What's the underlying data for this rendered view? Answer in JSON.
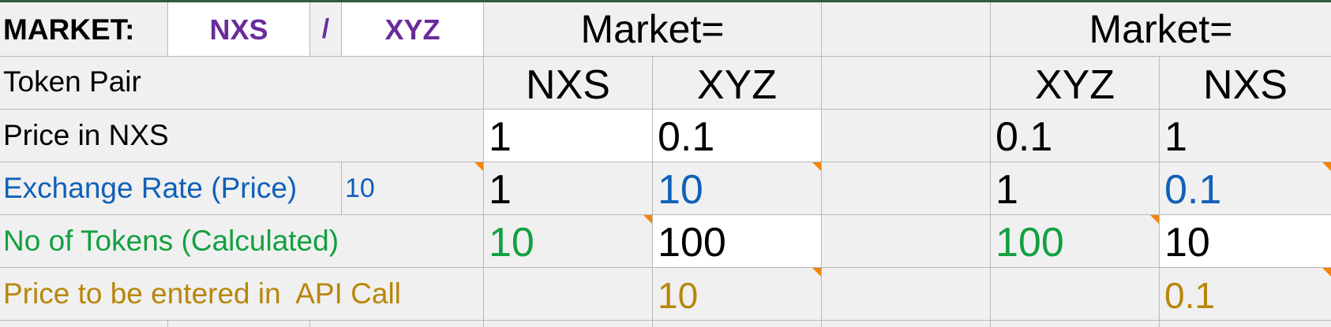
{
  "market_row": {
    "label": "MARKET:",
    "token_a": "NXS",
    "separator": "/",
    "token_b": "XYZ",
    "left_header": "Market=",
    "right_header": "Market="
  },
  "token_pair_row": {
    "label": "Token Pair",
    "left_a": "NXS",
    "left_b": "XYZ",
    "right_a": "XYZ",
    "right_b": "NXS"
  },
  "price_row": {
    "label": "Price in NXS",
    "left_a": "1",
    "left_b": "0.1",
    "right_a": "0.1",
    "right_b": "1"
  },
  "exchange_row": {
    "label": "Exchange Rate (Price)",
    "input_value": "10",
    "left_a": "1",
    "left_b": "10",
    "right_a": "1",
    "right_b": "0.1"
  },
  "tokens_row": {
    "label": "No of Tokens (Calculated)",
    "left_a": "10",
    "left_b": "100",
    "right_a": "100",
    "right_b": "10"
  },
  "api_row": {
    "label": "Price to be entered in  API Call",
    "left_a": "",
    "left_b": "10",
    "right_a": "",
    "right_b": "0.1"
  },
  "colors": {
    "blue": "#1060b8",
    "green": "#12a040",
    "gold": "#b8860b",
    "purple": "#6a2c9c",
    "note_marker": "#f4840a"
  }
}
